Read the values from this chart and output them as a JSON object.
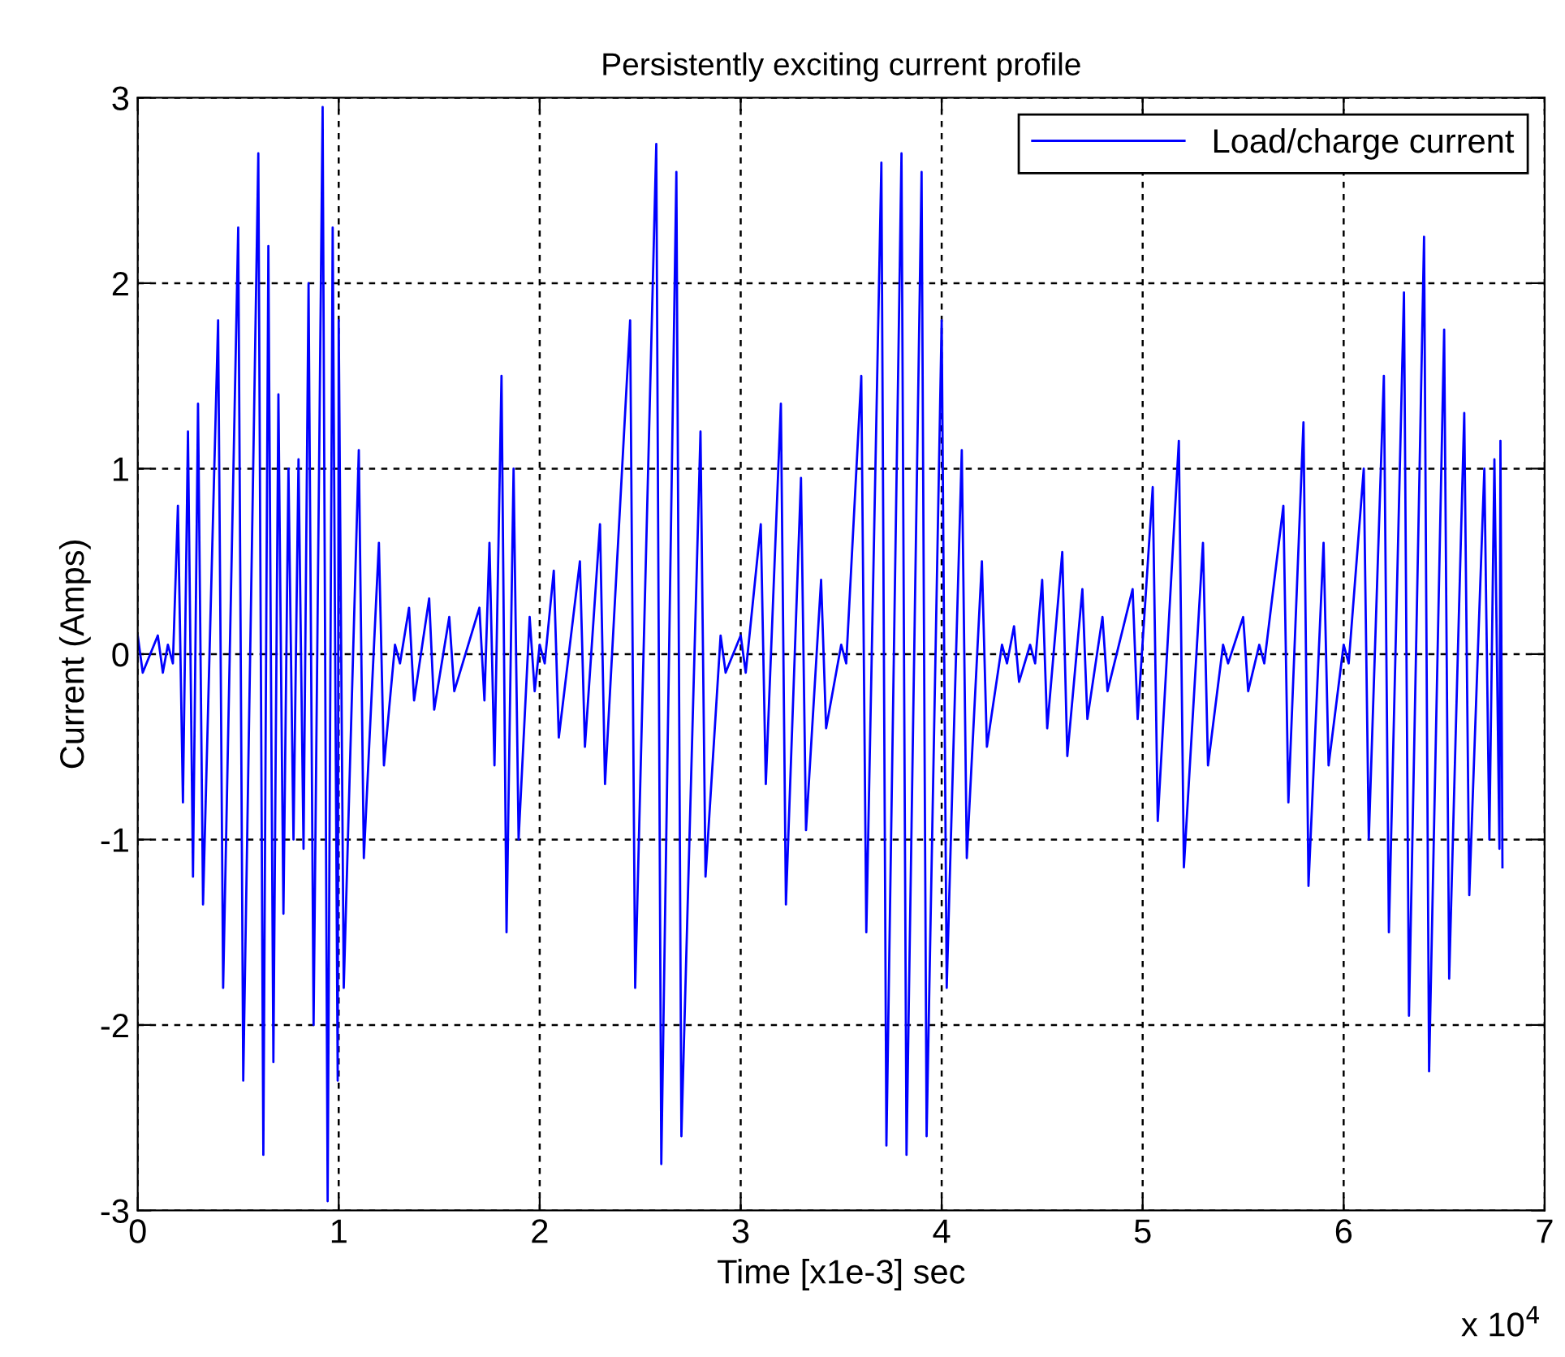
{
  "chart_data": {
    "type": "line",
    "title": "Persistently exciting current profile",
    "xlabel": "Time [x1e-3] sec",
    "ylabel": "Current (Amps)",
    "annotations": [
      "x 10$^{4}$"
    ],
    "xlim": [
      0,
      7
    ],
    "xticks": [
      0,
      1,
      2,
      3,
      4,
      5,
      6,
      7
    ],
    "ylim": [
      -3,
      3
    ],
    "yticks": [
      -3,
      -2,
      -1,
      0,
      1,
      2,
      3
    ],
    "grid": true,
    "legend": "top right",
    "marker": "none",
    "line_style": "solid",
    "series": [
      {
        "name": "Load/charge current",
        "color": "#0000ff",
        "x": [
          0,
          0.025,
          0.1,
          0.125,
          0.15,
          0.175,
          0.2,
          0.225,
          0.25,
          0.275,
          0.3,
          0.325,
          0.4,
          0.425,
          0.5,
          0.525,
          0.6,
          0.625,
          0.65,
          0.675,
          0.7,
          0.725,
          0.75,
          0.775,
          0.8,
          0.825,
          0.85,
          0.875,
          0.92,
          0.945,
          0.97,
          0.995,
          1.0,
          1.025,
          1.1,
          1.125,
          1.2,
          1.225,
          1.28,
          1.305,
          1.35,
          1.375,
          1.45,
          1.475,
          1.55,
          1.575,
          1.7,
          1.725,
          1.75,
          1.775,
          1.81,
          1.835,
          1.87,
          1.895,
          1.95,
          1.975,
          2.0,
          2.025,
          2.07,
          2.095,
          2.2,
          2.225,
          2.3,
          2.325,
          2.45,
          2.475,
          2.58,
          2.605,
          2.68,
          2.705,
          2.8,
          2.825,
          2.9,
          2.925,
          3.0,
          3.025,
          3.1,
          3.125,
          3.2,
          3.225,
          3.3,
          3.325,
          3.4,
          3.425,
          3.5,
          3.525,
          3.6,
          3.625,
          3.7,
          3.725,
          3.8,
          3.825,
          3.9,
          3.925,
          4.0,
          4.025,
          4.1,
          4.125,
          4.2,
          4.225,
          4.3,
          4.325,
          4.36,
          4.385,
          4.44,
          4.465,
          4.5,
          4.525,
          4.6,
          4.625,
          4.7,
          4.725,
          4.8,
          4.825,
          4.95,
          4.975,
          5.05,
          5.075,
          5.18,
          5.205,
          5.3,
          5.325,
          5.4,
          5.425,
          5.5,
          5.525,
          5.58,
          5.605,
          5.7,
          5.725,
          5.8,
          5.825,
          5.9,
          5.925,
          6.0,
          6.025,
          6.1,
          6.125,
          6.2,
          6.225,
          6.3,
          6.325,
          6.4,
          6.425,
          6.5,
          6.525,
          6.6,
          6.625,
          6.7,
          6.725,
          6.75,
          6.775,
          6.78,
          6.79
        ],
        "values": [
          0.1,
          -0.1,
          0.1,
          -0.1,
          0.05,
          -0.05,
          0.8,
          -0.8,
          1.2,
          -1.2,
          1.35,
          -1.35,
          1.8,
          -1.8,
          2.3,
          -2.3,
          2.7,
          -2.7,
          2.2,
          -2.2,
          1.4,
          -1.4,
          1.0,
          -1.0,
          1.05,
          -1.05,
          2.0,
          -2.0,
          2.95,
          -2.95,
          2.3,
          -2.3,
          1.8,
          -1.8,
          1.1,
          -1.1,
          0.6,
          -0.6,
          0.05,
          -0.05,
          0.25,
          -0.25,
          0.3,
          -0.3,
          0.2,
          -0.2,
          0.25,
          -0.25,
          0.6,
          -0.6,
          1.5,
          -1.5,
          1.0,
          -1.0,
          0.2,
          -0.2,
          0.05,
          -0.05,
          0.45,
          -0.45,
          0.5,
          -0.5,
          0.7,
          -0.7,
          1.8,
          -1.8,
          2.75,
          -2.75,
          2.6,
          -2.6,
          1.2,
          -1.2,
          0.1,
          -0.1,
          0.1,
          -0.1,
          0.7,
          -0.7,
          1.35,
          -1.35,
          0.95,
          -0.95,
          0.4,
          -0.4,
          0.05,
          -0.05,
          1.5,
          -1.5,
          2.65,
          -2.65,
          2.7,
          -2.7,
          2.6,
          -2.6,
          1.8,
          -1.8,
          1.1,
          -1.1,
          0.5,
          -0.5,
          0.05,
          -0.05,
          0.15,
          -0.15,
          0.05,
          -0.05,
          0.4,
          -0.4,
          0.55,
          -0.55,
          0.35,
          -0.35,
          0.2,
          -0.2,
          0.35,
          -0.35,
          0.9,
          -0.9,
          1.15,
          -1.15,
          0.6,
          -0.6,
          0.05,
          -0.05,
          0.2,
          -0.2,
          0.05,
          -0.05,
          0.8,
          -0.8,
          1.25,
          -1.25,
          0.6,
          -0.6,
          0.05,
          -0.05,
          1.0,
          -1.0,
          1.5,
          -1.5,
          1.95,
          -1.95,
          2.25,
          -2.25,
          1.75,
          -1.75,
          1.3,
          -1.3,
          1.0,
          -1.0,
          1.05,
          -1.05,
          1.15,
          -1.15
        ]
      }
    ]
  }
}
